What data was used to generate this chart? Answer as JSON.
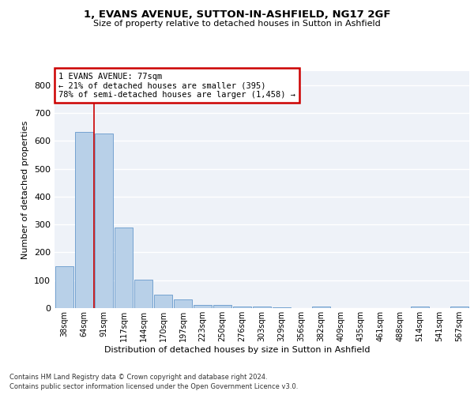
{
  "title": "1, EVANS AVENUE, SUTTON-IN-ASHFIELD, NG17 2GF",
  "subtitle": "Size of property relative to detached houses in Sutton in Ashfield",
  "xlabel": "Distribution of detached houses by size in Sutton in Ashfield",
  "ylabel": "Number of detached properties",
  "categories": [
    "38sqm",
    "64sqm",
    "91sqm",
    "117sqm",
    "144sqm",
    "170sqm",
    "197sqm",
    "223sqm",
    "250sqm",
    "276sqm",
    "303sqm",
    "329sqm",
    "356sqm",
    "382sqm",
    "409sqm",
    "435sqm",
    "461sqm",
    "488sqm",
    "514sqm",
    "541sqm",
    "567sqm"
  ],
  "values": [
    150,
    633,
    625,
    288,
    103,
    47,
    31,
    12,
    10,
    5,
    5,
    2,
    0,
    5,
    0,
    0,
    0,
    0,
    5,
    0,
    5
  ],
  "bar_color": "#b8d0e8",
  "bar_edge_color": "#6699cc",
  "property_line_x": 1.5,
  "annotation_text": "1 EVANS AVENUE: 77sqm\n← 21% of detached houses are smaller (395)\n78% of semi-detached houses are larger (1,458) →",
  "annotation_box_color": "#ffffff",
  "annotation_box_edge_color": "#cc0000",
  "vline_color": "#cc0000",
  "plot_bg_color": "#eef2f8",
  "ylim": [
    0,
    850
  ],
  "yticks": [
    0,
    100,
    200,
    300,
    400,
    500,
    600,
    700,
    800
  ],
  "grid_color": "#ffffff",
  "footer_line1": "Contains HM Land Registry data © Crown copyright and database right 2024.",
  "footer_line2": "Contains public sector information licensed under the Open Government Licence v3.0."
}
